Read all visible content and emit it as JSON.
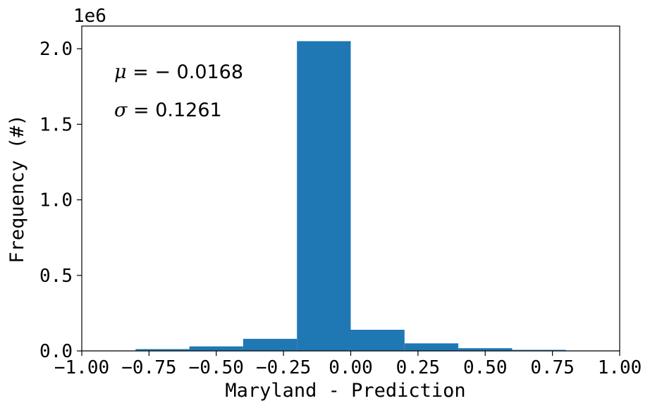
{
  "chart_data": {
    "type": "bar",
    "subtype": "histogram",
    "xlabel": "Maryland - Prediction",
    "ylabel": "Frequency (#)",
    "y_offset_label": "1e6",
    "xlim": [
      -1.0,
      1.0
    ],
    "ylim": [
      0,
      2.15
    ],
    "grid": false,
    "color": "#1f77b4",
    "xticks": [
      -1.0,
      -0.75,
      -0.5,
      -0.25,
      0.0,
      0.25,
      0.5,
      0.75,
      1.0
    ],
    "xtick_labels": [
      "−1.00",
      "−0.75",
      "−0.50",
      "−0.25",
      "0.00",
      "0.25",
      "0.50",
      "0.75",
      "1.00"
    ],
    "yticks": [
      0.0,
      0.5,
      1.0,
      1.5,
      2.0
    ],
    "ytick_labels": [
      "0.0",
      "0.5",
      "1.0",
      "1.5",
      "2.0"
    ],
    "bins": [
      {
        "x0": -1.0,
        "x1": -0.8,
        "value": 0.003
      },
      {
        "x0": -0.8,
        "x1": -0.6,
        "value": 0.012
      },
      {
        "x0": -0.6,
        "x1": -0.4,
        "value": 0.03
      },
      {
        "x0": -0.4,
        "x1": -0.2,
        "value": 0.08
      },
      {
        "x0": -0.2,
        "x1": 0.0,
        "value": 2.05
      },
      {
        "x0": 0.0,
        "x1": 0.2,
        "value": 0.14
      },
      {
        "x0": 0.2,
        "x1": 0.4,
        "value": 0.05
      },
      {
        "x0": 0.4,
        "x1": 0.6,
        "value": 0.018
      },
      {
        "x0": 0.6,
        "x1": 0.8,
        "value": 0.007
      },
      {
        "x0": 0.8,
        "x1": 1.0,
        "value": 0.003
      }
    ],
    "annotations": [
      {
        "symbol": "μ",
        "text": " = − 0.0168"
      },
      {
        "symbol": "σ",
        "text": " = 0.1261"
      }
    ]
  }
}
